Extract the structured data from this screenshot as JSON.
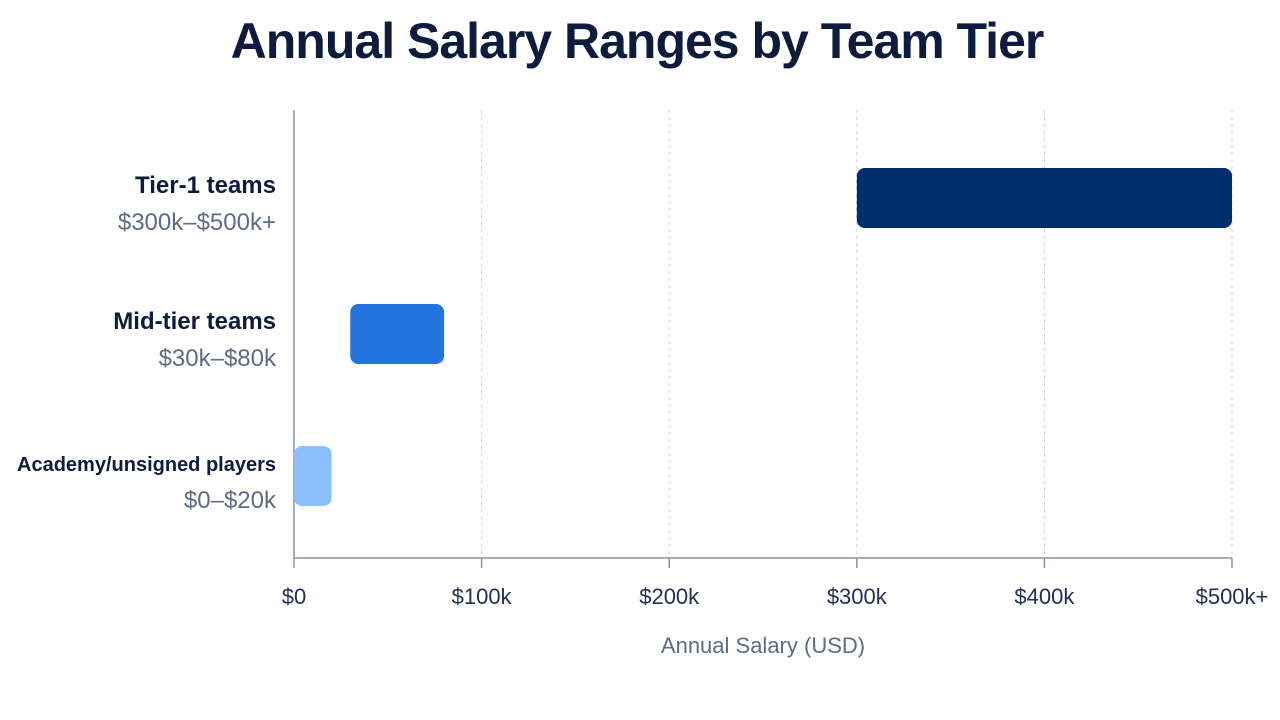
{
  "chart_data": {
    "type": "bar",
    "orientation": "horizontal",
    "subtype": "range",
    "title": "Annual Salary Ranges by Team Tier",
    "xlabel": "Annual Salary (USD)",
    "ylabel": "",
    "xlim": [
      0,
      500
    ],
    "x_unit": "thousand USD",
    "xticks": [
      0,
      100,
      200,
      300,
      400,
      500
    ],
    "xtick_labels": [
      "$0",
      "$100k",
      "$200k",
      "$300k",
      "$400k",
      "$500k+"
    ],
    "grid": "vertical dashed",
    "categories": [
      "Tier-1 teams",
      "Mid-tier teams",
      "Academy/unsigned players"
    ],
    "range_labels": [
      "$300k–$500k+",
      "$30k–$80k",
      "$0–$20k"
    ],
    "ranges": [
      [
        300,
        500
      ],
      [
        30,
        80
      ],
      [
        0,
        20
      ]
    ],
    "colors": [
      "#002d6b",
      "#2474de",
      "#8cc0fd"
    ]
  }
}
